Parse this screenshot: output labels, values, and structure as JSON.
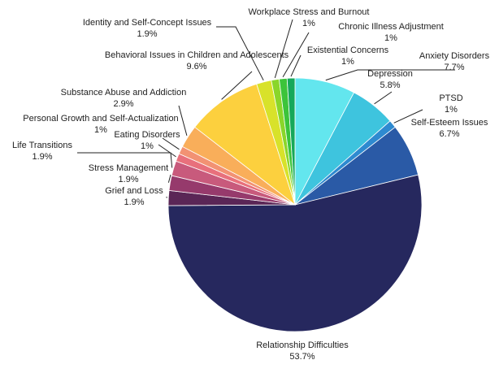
{
  "chart_data": {
    "type": "pie",
    "title": "",
    "slices": [
      {
        "label": "Anxiety Disorders",
        "value": 7.7,
        "value_label": "7.7%",
        "color": "#63e6ee"
      },
      {
        "label": "Depression",
        "value": 5.8,
        "value_label": "5.8%",
        "color": "#3ec4de"
      },
      {
        "label": "PTSD",
        "value": 1,
        "value_label": "1%",
        "color": "#2e8ad0"
      },
      {
        "label": "Self-Esteem Issues",
        "value": 6.7,
        "value_label": "6.7%",
        "color": "#2a5aa6"
      },
      {
        "label": "Relationship Difficulties",
        "value": 53.7,
        "value_label": "53.7%",
        "color": "#26285e"
      },
      {
        "label": "Grief and Loss",
        "value": 1.9,
        "value_label": "1.9%",
        "color": "#5a2656"
      },
      {
        "label": "Stress Management",
        "value": 1.9,
        "value_label": "1.9%",
        "color": "#963a6c"
      },
      {
        "label": "Life Transitions",
        "value": 1.9,
        "value_label": "1.9%",
        "color": "#c85a7c"
      },
      {
        "label": "Eating Disorders",
        "value": 1,
        "value_label": "1%",
        "color": "#e8707c"
      },
      {
        "label": "Personal Growth and Self-Actualization",
        "value": 1,
        "value_label": "1%",
        "color": "#f29273"
      },
      {
        "label": "Substance Abuse and Addiction",
        "value": 2.9,
        "value_label": "2.9%",
        "color": "#f9ae5a"
      },
      {
        "label": "Behavioral Issues in Children and Adolescents",
        "value": 9.6,
        "value_label": "9.6%",
        "color": "#fcd03e"
      },
      {
        "label": "Identity and Self-Concept Issues",
        "value": 1.9,
        "value_label": "1.9%",
        "color": "#d8e22a"
      },
      {
        "label": "Workplace Stress and Burnout",
        "value": 1,
        "value_label": "1%",
        "color": "#8ad62a"
      },
      {
        "label": "Chronic Illness Adjustment",
        "value": 1,
        "value_label": "1%",
        "color": "#3cc43a"
      },
      {
        "label": "Existential Concerns",
        "value": 1,
        "value_label": "1%",
        "color": "#16a85a"
      }
    ]
  }
}
